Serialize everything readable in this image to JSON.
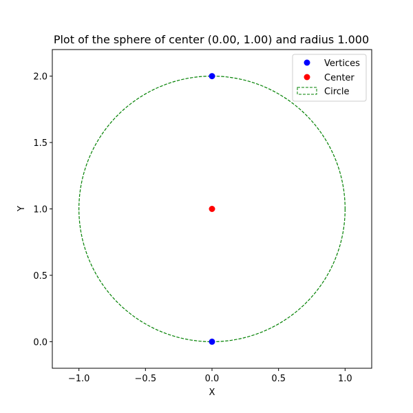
{
  "chart_data": {
    "type": "scatter",
    "title": "Plot of the sphere of center (0.00, 1.00) and radius 1.000",
    "xlabel": "X",
    "ylabel": "Y",
    "xlim": [
      -1.2,
      1.2
    ],
    "ylim": [
      -0.2,
      2.2
    ],
    "grid": false,
    "legend_position": "top-right",
    "x_ticks": [
      -1.0,
      -0.5,
      0.0,
      0.5,
      1.0
    ],
    "x_tick_labels": [
      "−1.0",
      "−0.5",
      "0.0",
      "0.5",
      "1.0"
    ],
    "y_ticks": [
      0.0,
      0.5,
      1.0,
      1.5,
      2.0
    ],
    "y_tick_labels": [
      "0.0",
      "0.5",
      "1.0",
      "1.5",
      "2.0"
    ],
    "series": [
      {
        "name": "Vertices",
        "kind": "points",
        "color": "#0000ff",
        "points": [
          [
            0.0,
            2.0
          ],
          [
            0.0,
            0.0
          ]
        ]
      },
      {
        "name": "Center",
        "kind": "points",
        "color": "#ff0000",
        "points": [
          [
            0.0,
            1.0
          ]
        ]
      },
      {
        "name": "Circle",
        "kind": "circle",
        "color": "#008000",
        "center": [
          0.0,
          1.0
        ],
        "radius": 1.0,
        "linestyle": "dashed"
      }
    ]
  }
}
